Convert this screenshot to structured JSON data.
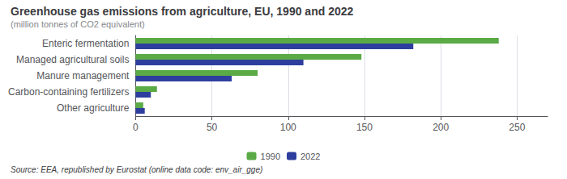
{
  "chart_data": {
    "type": "bar",
    "orientation": "horizontal",
    "title": "Greenhouse gas emissions from agriculture, EU, 1990 and 2022",
    "subtitle": "(million tonnes of CO2 equivalent)",
    "source": "Source: EEA, republished by Eurostat (online data code: env_air_gge)",
    "categories": [
      "Enteric fermentation",
      "Managed agricultural soils",
      "Manure management",
      "Carbon-containing fertilizers",
      "Other agriculture"
    ],
    "series": [
      {
        "name": "1990",
        "color": "#5aaa46",
        "values": [
          238,
          148,
          80,
          14,
          5
        ]
      },
      {
        "name": "2022",
        "color": "#2e3e9e",
        "values": [
          182,
          110,
          63,
          10,
          6
        ]
      }
    ],
    "xlim": [
      0,
      270
    ],
    "xticks": [
      0,
      50,
      100,
      150,
      200,
      250
    ],
    "grid": true,
    "legend": "bottom"
  }
}
